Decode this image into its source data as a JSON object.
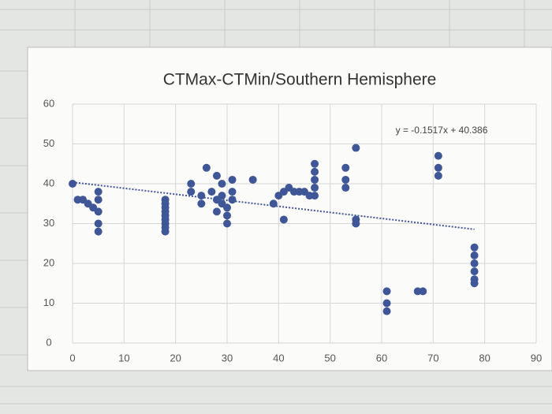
{
  "chart_data": {
    "type": "scatter",
    "title": "CTMax-CTMin/Southern Hemisphere",
    "x": [
      0,
      1,
      2,
      3,
      4,
      5,
      5,
      5,
      5,
      5,
      18,
      18,
      18,
      18,
      18,
      18,
      18,
      18,
      18,
      23,
      23,
      25,
      25,
      26,
      27,
      28,
      28,
      28,
      29,
      29,
      29,
      30,
      30,
      30,
      31,
      31,
      31,
      35,
      39,
      40,
      41,
      41,
      42,
      43,
      44,
      45,
      46,
      47,
      47,
      47,
      47,
      47,
      53,
      53,
      53,
      55,
      55,
      55,
      61,
      61,
      61,
      67,
      68,
      71,
      71,
      71,
      78,
      78,
      78,
      78,
      78,
      78
    ],
    "values": [
      40,
      36,
      36,
      35,
      34,
      38,
      36,
      33,
      30,
      28,
      36,
      34,
      32,
      30,
      28,
      35,
      33,
      31,
      29,
      40,
      38,
      37,
      35,
      44,
      38,
      42,
      36,
      33,
      40,
      37,
      35,
      30,
      34,
      32,
      41,
      38,
      36,
      41,
      35,
      37,
      38,
      31,
      39,
      38,
      38,
      38,
      37,
      45,
      43,
      41,
      39,
      37,
      44,
      41,
      39,
      49,
      31,
      30,
      13,
      10,
      8,
      13,
      13,
      47,
      44,
      42,
      24,
      22,
      20,
      18,
      16,
      15
    ],
    "color": "#3f5697",
    "trendline": {
      "label": "y = -0.1517x + 40.386",
      "x": [
        0,
        78
      ],
      "values": [
        40.386,
        28.553
      ],
      "color": "#3f5697"
    },
    "xlim": [
      0,
      90
    ],
    "xticks": [
      0,
      10,
      20,
      30,
      40,
      50,
      60,
      70,
      80,
      90
    ],
    "ylim": [
      0,
      60
    ],
    "yticks": [
      0,
      10,
      20,
      30,
      40,
      50,
      60
    ],
    "grid": true
  }
}
